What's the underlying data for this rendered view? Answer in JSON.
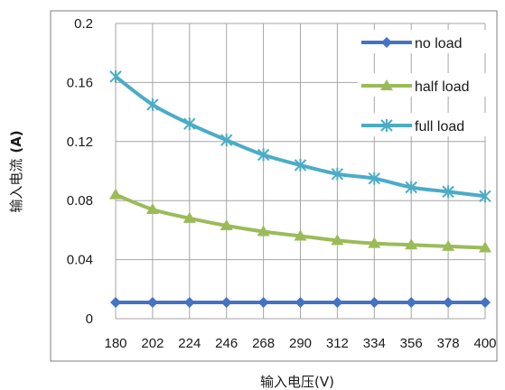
{
  "chart_data": {
    "type": "line",
    "xlabel": "输入电压(V)",
    "ylabel": "输入电流",
    "ylabel_unit": "(A)",
    "categories": [
      "180",
      "202",
      "224",
      "246",
      "268",
      "290",
      "312",
      "334",
      "356",
      "378",
      "400"
    ],
    "yticks": [
      "0",
      "0.04",
      "0.08",
      "0.12",
      "0.16",
      "0.2"
    ],
    "ylim": [
      0,
      0.2
    ],
    "grid": true,
    "legend_position": "top-right",
    "series": [
      {
        "name": "no load",
        "color": "#4472c4",
        "marker": "diamond",
        "values": [
          0.011,
          0.011,
          0.011,
          0.011,
          0.011,
          0.011,
          0.011,
          0.011,
          0.011,
          0.011,
          0.011
        ]
      },
      {
        "name": "half load",
        "color": "#9bbb59",
        "marker": "triangle",
        "values": [
          0.084,
          0.074,
          0.068,
          0.063,
          0.059,
          0.056,
          0.053,
          0.051,
          0.05,
          0.049,
          0.048
        ]
      },
      {
        "name": "full load",
        "color": "#4bacc6",
        "marker": "star",
        "values": [
          0.164,
          0.145,
          0.132,
          0.121,
          0.111,
          0.104,
          0.098,
          0.095,
          0.089,
          0.086,
          0.083
        ]
      }
    ]
  }
}
